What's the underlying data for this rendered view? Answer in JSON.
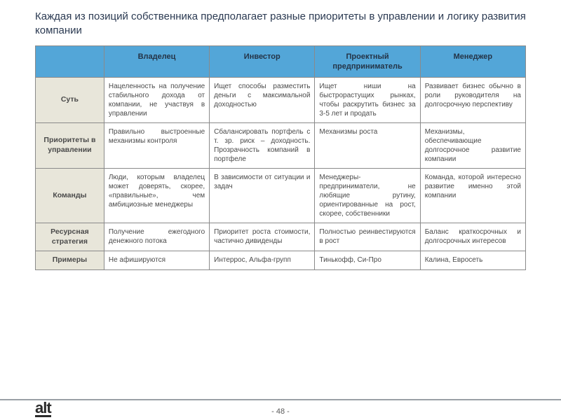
{
  "title": "Каждая из позиций собственника предполагает разные приоритеты в управлении и логику развития компании",
  "columns": [
    "",
    "Владелец",
    "Инвестор",
    "Проектный предприниматель",
    "Менеджер"
  ],
  "rows": [
    {
      "head": "Суть",
      "cells": [
        "Нацеленность на получение стабильного дохода от компании, не участвуя в управлении",
        "Ищет способы разместить деньги с максимальной доходностью",
        "Ищет ниши на быстрорастущих рынках, чтобы раскрутить бизнес за 3-5 лет и продать",
        "Развивает бизнес обычно в роли руководителя на долгосрочную перспективу"
      ]
    },
    {
      "head": "Приоритеты в управлении",
      "cells": [
        "Правильно выстроенные механизмы контроля",
        "Сбалансировать портфель с т. зр. риск – доходность. Прозрачность компаний в портфеле",
        "Механизмы роста",
        "Механизмы, обеспечивающие долгосрочное развитие компании"
      ]
    },
    {
      "head": "Команды",
      "cells": [
        "Люди, которым владелец может доверять, скорее, «правильные», чем амбициозные менеджеры",
        "В зависимости от ситуации и задач",
        "Менеджеры-предприниматели, не любящие рутину, ориентированные на рост, скорее, собственники",
        "Команда, которой интересно развитие именно этой компании"
      ]
    },
    {
      "head": "Ресурсная стратегия",
      "cells": [
        "Получение ежегодного денежного потока",
        "Приоритет роста стоимости, частично дивиденды",
        "Полностью реинвестируются в рост",
        "Баланс краткосрочных и долгосрочных интересов"
      ]
    },
    {
      "head": "Примеры",
      "cells": [
        "Не афишируются",
        "Интеррос, Альфа-групп",
        "Тинькофф, Си-Про",
        "Калина, Евросеть"
      ]
    }
  ],
  "logo": "alt",
  "page": "- 48 -",
  "colors": {
    "header_bg": "#53a6d8",
    "rowhead_bg": "#e8e6da",
    "border": "#8a8a8a",
    "title_text": "#2b3a52",
    "cell_text": "#4a4a4a"
  }
}
